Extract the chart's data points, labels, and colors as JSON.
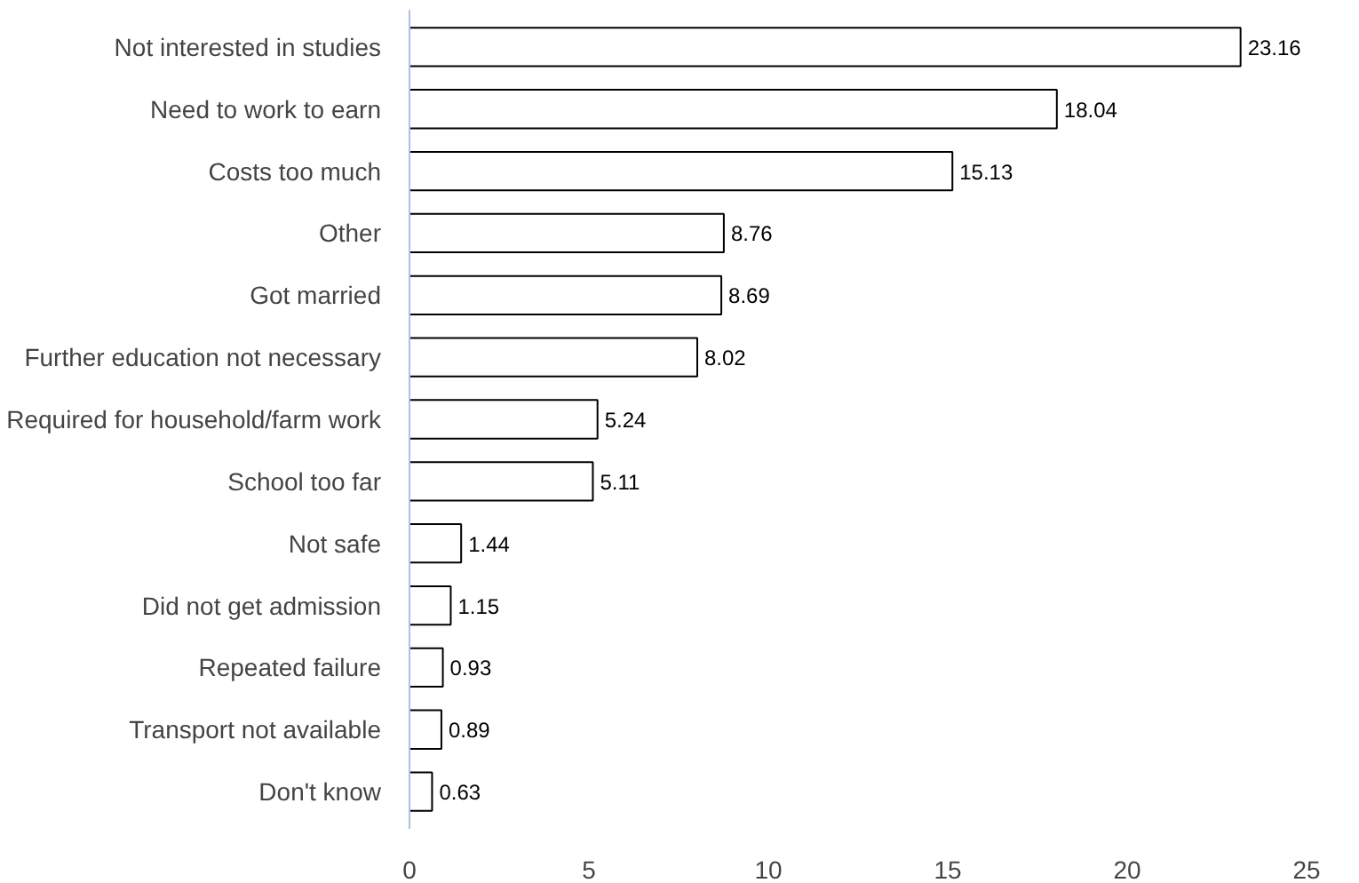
{
  "chart_data": {
    "type": "bar",
    "orientation": "horizontal",
    "categories": [
      "Not interested in studies",
      "Need to work to earn",
      "Costs too much",
      "Other",
      "Got married",
      "Further education not necessary",
      "Required for household/farm work",
      "School too far",
      "Not safe",
      "Did not get admission",
      "Repeated failure",
      "Transport not available",
      "Don't know"
    ],
    "values": [
      23.16,
      18.04,
      15.13,
      8.76,
      8.69,
      8.02,
      5.24,
      5.11,
      1.44,
      1.15,
      0.93,
      0.89,
      0.63
    ],
    "color": "#ffffff",
    "xlim": [
      0,
      25
    ],
    "xticks": [
      0,
      5,
      10,
      15,
      20,
      25
    ],
    "data_labels": true,
    "grid": false
  }
}
